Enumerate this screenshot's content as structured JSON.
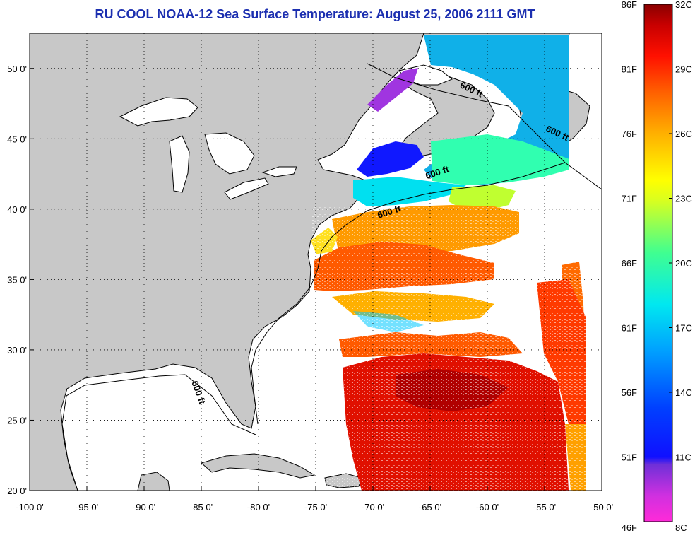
{
  "title": "RU COOL  NOAA-12  Sea Surface Temperature:  August 25, 2006 2111 GMT",
  "map": {
    "lon_range": [
      -100,
      -50
    ],
    "lat_range": [
      20,
      52.5
    ],
    "grid": "dotted",
    "lon_ticks": [
      {
        "value": -100,
        "label": "-100 0'"
      },
      {
        "value": -95,
        "label": "-95 0'"
      },
      {
        "value": -90,
        "label": "-90 0'"
      },
      {
        "value": -85,
        "label": "-85 0'"
      },
      {
        "value": -80,
        "label": "-80 0'"
      },
      {
        "value": -75,
        "label": "-75 0'"
      },
      {
        "value": -70,
        "label": "-70 0'"
      },
      {
        "value": -65,
        "label": "-65 0'"
      },
      {
        "value": -60,
        "label": "-60 0'"
      },
      {
        "value": -55,
        "label": "-55 0'"
      },
      {
        "value": -50,
        "label": "-50 0'"
      }
    ],
    "lat_ticks": [
      {
        "value": 50,
        "label": "50 0'"
      },
      {
        "value": 45,
        "label": "45 0'"
      },
      {
        "value": 40,
        "label": "40 0'"
      },
      {
        "value": 35,
        "label": "35 0'"
      },
      {
        "value": 30,
        "label": "30 0'"
      },
      {
        "value": 25,
        "label": "25 0'"
      },
      {
        "value": 20,
        "label": "20 0'"
      }
    ],
    "contour_label": "600 ft",
    "contour_label_positions": [
      {
        "lon": -61.5,
        "lat": 48.3,
        "rotate": 25
      },
      {
        "lon": -54.0,
        "lat": 45.2,
        "rotate": 25
      },
      {
        "lon": -64.3,
        "lat": 42.4,
        "rotate": -18
      },
      {
        "lon": -68.5,
        "lat": 39.6,
        "rotate": -18
      },
      {
        "lon": -85.5,
        "lat": 26.9,
        "rotate": 70
      }
    ],
    "colors": {
      "land": "#c8c8c8",
      "water_no_data": "#ffffff",
      "coast": "#000000"
    }
  },
  "colorbar": {
    "celsius_ticks": [
      "32C",
      "29C",
      "26C",
      "23C",
      "20C",
      "17C",
      "14C",
      "11C",
      "8C"
    ],
    "fahrenheit_ticks": [
      "86F",
      "81F",
      "76F",
      "71F",
      "66F",
      "61F",
      "56F",
      "51F",
      "46F"
    ],
    "celsius_range": [
      8,
      32
    ],
    "colors": [
      "#ff2ad8",
      "#a335e0",
      "#1010ff",
      "#0070ff",
      "#00d8ff",
      "#30ffc0",
      "#a0ff30",
      "#ffff00",
      "#ffc000",
      "#ff7000",
      "#ff1800",
      "#c00000",
      "#8a0000"
    ]
  }
}
